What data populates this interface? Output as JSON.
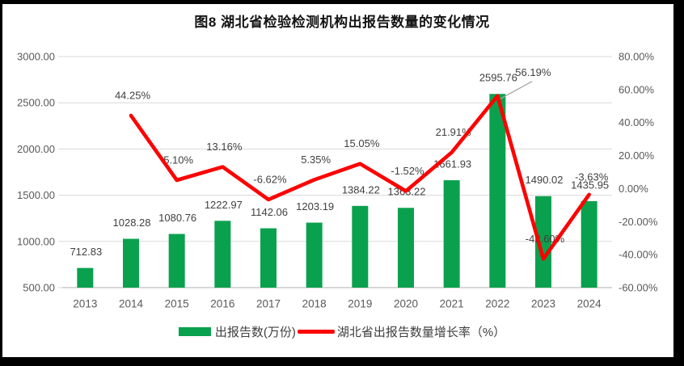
{
  "title": "图8  湖北省检验检测机构出报告数量的变化情况",
  "legend": {
    "items": [
      {
        "label": "出报告数(万份)",
        "marker": "bar-swatch"
      },
      {
        "label": "湖北省出报告数量增长率（%）",
        "marker": "line-swatch"
      }
    ]
  },
  "colors": {
    "bar": "#0aa14e",
    "line": "#fe0000",
    "grid": "#d9d9d9",
    "axis_line": "#bfbfbf",
    "tick_text": "#595959",
    "label_text": "#404040",
    "leader": "#a6a6a6",
    "frame": "#000000",
    "background": "#ffffff"
  },
  "chart_data": {
    "type": "bar+line",
    "title": "图8  湖北省检验检测机构出报告数量的变化情况",
    "categories": [
      "2013",
      "2014",
      "2015",
      "2016",
      "2017",
      "2018",
      "2019",
      "2020",
      "2021",
      "2022",
      "2023",
      "2024"
    ],
    "series": [
      {
        "name": "出报告数(万份)",
        "type": "bar",
        "axis": "left",
        "values": [
          712.83,
          1028.28,
          1080.76,
          1222.97,
          1142.06,
          1203.19,
          1384.22,
          1363.22,
          1661.93,
          2595.76,
          1490.02,
          1435.95
        ]
      },
      {
        "name": "湖北省出报告数量增长率（%）",
        "type": "line",
        "axis": "right",
        "values": [
          null,
          44.25,
          5.1,
          13.16,
          -6.62,
          5.35,
          15.05,
          -1.52,
          21.91,
          56.19,
          -42.6,
          -3.63
        ]
      }
    ],
    "left_axis": {
      "min": 500,
      "max": 3000,
      "step": 500,
      "tick_format": "0.00"
    },
    "right_axis": {
      "min": -60,
      "max": 80,
      "step": 20,
      "tick_format": "0.00%"
    },
    "grid": true,
    "data_labels": true,
    "legend_position": "bottom"
  }
}
